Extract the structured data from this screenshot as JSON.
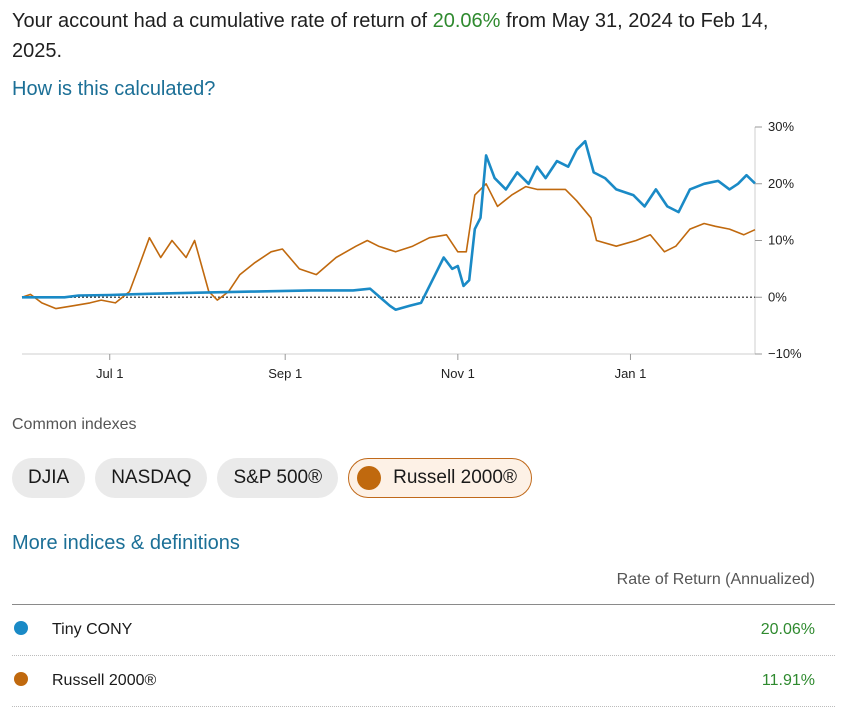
{
  "summary": {
    "prefix": "Your account had a cumulative rate of return of ",
    "value": "20.06%",
    "suffix": " from May 31, 2024 to Feb 14, 2025."
  },
  "how_link": "How is this calculated?",
  "indexes": {
    "title": "Common indexes",
    "chips": [
      {
        "label": "DJIA",
        "active": false
      },
      {
        "label": "NASDAQ",
        "active": false
      },
      {
        "label": "S&P 500®",
        "active": false
      },
      {
        "label": "Russell 2000®",
        "active": true
      }
    ]
  },
  "more_link": "More indices & definitions",
  "table": {
    "header": "Rate of Return (Annualized)",
    "rows": [
      {
        "name": "Tiny CONY",
        "value": "20.06%",
        "color": "#1a8ac6"
      },
      {
        "name": "Russell 2000®",
        "value": "11.91%",
        "color": "#c0690e"
      }
    ]
  },
  "chart_data": {
    "type": "line",
    "x_labels": [
      "Jul 1",
      "Sep 1",
      "Nov 1",
      "Jan 1"
    ],
    "y_ticks": [
      "30%",
      "20%",
      "10%",
      "0%",
      "−10%"
    ],
    "ylim": [
      -10,
      30
    ],
    "xlim": [
      "2024-05-31",
      "2025-02-14"
    ],
    "reference_line": 0,
    "series": [
      {
        "name": "Tiny CONY",
        "color": "#1a8ac6",
        "points": [
          [
            "2024-05-31",
            0
          ],
          [
            "2024-06-15",
            0
          ],
          [
            "2024-06-20",
            0.3
          ],
          [
            "2024-07-01",
            0.4
          ],
          [
            "2024-07-15",
            0.6
          ],
          [
            "2024-08-01",
            0.8
          ],
          [
            "2024-08-20",
            1
          ],
          [
            "2024-09-10",
            1.2
          ],
          [
            "2024-09-25",
            1.2
          ],
          [
            "2024-10-01",
            1.5
          ],
          [
            "2024-10-08",
            -1.5
          ],
          [
            "2024-10-10",
            -2.2
          ],
          [
            "2024-10-15",
            -1.5
          ],
          [
            "2024-10-19",
            -1
          ],
          [
            "2024-10-21",
            1
          ],
          [
            "2024-10-24",
            4
          ],
          [
            "2024-10-27",
            7
          ],
          [
            "2024-10-30",
            5
          ],
          [
            "2024-11-01",
            5.5
          ],
          [
            "2024-11-03",
            2
          ],
          [
            "2024-11-05",
            3
          ],
          [
            "2024-11-07",
            12
          ],
          [
            "2024-11-09",
            14
          ],
          [
            "2024-11-11",
            25
          ],
          [
            "2024-11-14",
            21
          ],
          [
            "2024-11-18",
            19
          ],
          [
            "2024-11-22",
            22
          ],
          [
            "2024-11-26",
            20
          ],
          [
            "2024-11-29",
            23
          ],
          [
            "2024-12-02",
            21
          ],
          [
            "2024-12-06",
            24
          ],
          [
            "2024-12-10",
            23
          ],
          [
            "2024-12-13",
            26
          ],
          [
            "2024-12-16",
            27.5
          ],
          [
            "2024-12-19",
            22
          ],
          [
            "2024-12-23",
            21
          ],
          [
            "2024-12-27",
            19
          ],
          [
            "2025-01-02",
            18
          ],
          [
            "2025-01-06",
            16
          ],
          [
            "2025-01-10",
            19
          ],
          [
            "2025-01-14",
            16
          ],
          [
            "2025-01-18",
            15
          ],
          [
            "2025-01-22",
            19
          ],
          [
            "2025-01-27",
            20
          ],
          [
            "2025-02-01",
            20.5
          ],
          [
            "2025-02-05",
            19
          ],
          [
            "2025-02-08",
            20
          ],
          [
            "2025-02-11",
            21.5
          ],
          [
            "2025-02-14",
            20.06
          ]
        ]
      },
      {
        "name": "Russell 2000®",
        "color": "#c0690e",
        "points": [
          [
            "2024-05-31",
            0
          ],
          [
            "2024-06-03",
            0.5
          ],
          [
            "2024-06-07",
            -1
          ],
          [
            "2024-06-12",
            -2
          ],
          [
            "2024-06-18",
            -1.5
          ],
          [
            "2024-06-24",
            -1
          ],
          [
            "2024-06-28",
            -0.5
          ],
          [
            "2024-07-03",
            -1
          ],
          [
            "2024-07-08",
            1
          ],
          [
            "2024-07-11",
            5
          ],
          [
            "2024-07-15",
            10.5
          ],
          [
            "2024-07-19",
            7
          ],
          [
            "2024-07-23",
            10
          ],
          [
            "2024-07-28",
            7
          ],
          [
            "2024-07-31",
            10
          ],
          [
            "2024-08-05",
            1
          ],
          [
            "2024-08-08",
            -0.5
          ],
          [
            "2024-08-12",
            1
          ],
          [
            "2024-08-16",
            4
          ],
          [
            "2024-08-21",
            6
          ],
          [
            "2024-08-27",
            8
          ],
          [
            "2024-08-31",
            8.5
          ],
          [
            "2024-09-06",
            5
          ],
          [
            "2024-09-12",
            4
          ],
          [
            "2024-09-19",
            7
          ],
          [
            "2024-09-26",
            9
          ],
          [
            "2024-09-30",
            10
          ],
          [
            "2024-10-04",
            9
          ],
          [
            "2024-10-10",
            8
          ],
          [
            "2024-10-16",
            9
          ],
          [
            "2024-10-22",
            10.5
          ],
          [
            "2024-10-28",
            11
          ],
          [
            "2024-11-01",
            8
          ],
          [
            "2024-11-04",
            8
          ],
          [
            "2024-11-07",
            18
          ],
          [
            "2024-11-11",
            20
          ],
          [
            "2024-11-15",
            16
          ],
          [
            "2024-11-20",
            18
          ],
          [
            "2024-11-25",
            19.5
          ],
          [
            "2024-11-29",
            19
          ],
          [
            "2024-12-03",
            19
          ],
          [
            "2024-12-09",
            19
          ],
          [
            "2024-12-13",
            17
          ],
          [
            "2024-12-18",
            14
          ],
          [
            "2024-12-20",
            10
          ],
          [
            "2024-12-27",
            9
          ],
          [
            "2025-01-03",
            10
          ],
          [
            "2025-01-08",
            11
          ],
          [
            "2025-01-13",
            8
          ],
          [
            "2025-01-17",
            9
          ],
          [
            "2025-01-22",
            12
          ],
          [
            "2025-01-27",
            13
          ],
          [
            "2025-01-31",
            12.5
          ],
          [
            "2025-02-05",
            12
          ],
          [
            "2025-02-10",
            11
          ],
          [
            "2025-02-14",
            11.91
          ]
        ]
      }
    ]
  }
}
